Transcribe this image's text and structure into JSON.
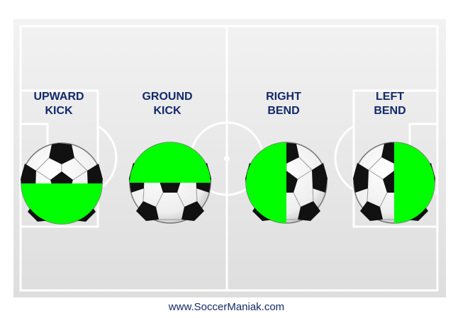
{
  "kicks": [
    {
      "line1": "UPWARD",
      "line2": "KICK"
    },
    {
      "line1": "GROUND",
      "line2": "KICK"
    },
    {
      "line1": "RIGHT",
      "line2": "BEND"
    },
    {
      "line1": "LEFT",
      "line2": "BEND"
    }
  ],
  "footer": {
    "website": "www.SoccerManiak.com"
  },
  "colors": {
    "highlight": "#00ff00",
    "label": "#13296a",
    "pitch": "#e6e6e6",
    "lines": "#ffffff"
  },
  "icons": {
    "ball": "soccer-ball-icon"
  }
}
